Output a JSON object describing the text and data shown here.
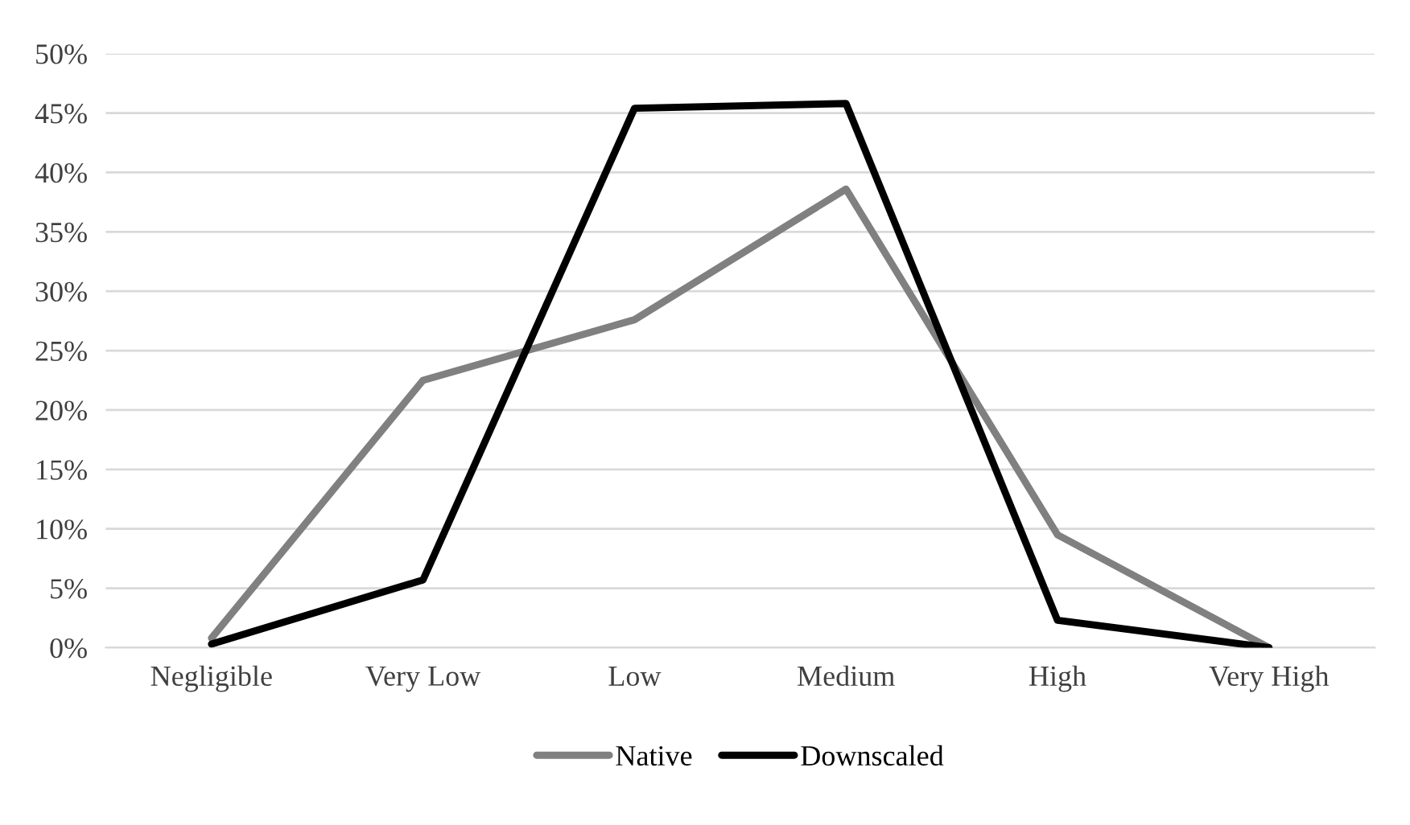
{
  "chart_data": {
    "type": "line",
    "categories": [
      "Negligible",
      "Very Low",
      "Low",
      "Medium",
      "High",
      "Very High"
    ],
    "series": [
      {
        "name": "Native",
        "color": "#808080",
        "values": [
          0.8,
          22.5,
          27.6,
          38.6,
          9.5,
          0
        ]
      },
      {
        "name": "Downscaled",
        "color": "#000000",
        "values": [
          0.3,
          5.7,
          45.4,
          45.8,
          2.3,
          0
        ]
      }
    ],
    "ylim": [
      0,
      50
    ],
    "yticks": [
      {
        "value": 0,
        "label": "0%"
      },
      {
        "value": 5,
        "label": "5%"
      },
      {
        "value": 10,
        "label": "10%"
      },
      {
        "value": 15,
        "label": "15%"
      },
      {
        "value": 20,
        "label": "20%"
      },
      {
        "value": 25,
        "label": "25%"
      },
      {
        "value": 30,
        "label": "30%"
      },
      {
        "value": 35,
        "label": "35%"
      },
      {
        "value": 40,
        "label": "40%"
      },
      {
        "value": 45,
        "label": "45%"
      },
      {
        "value": 50,
        "label": "50%"
      }
    ],
    "grid": "y",
    "legend": "bottom",
    "line_style": "solid"
  }
}
